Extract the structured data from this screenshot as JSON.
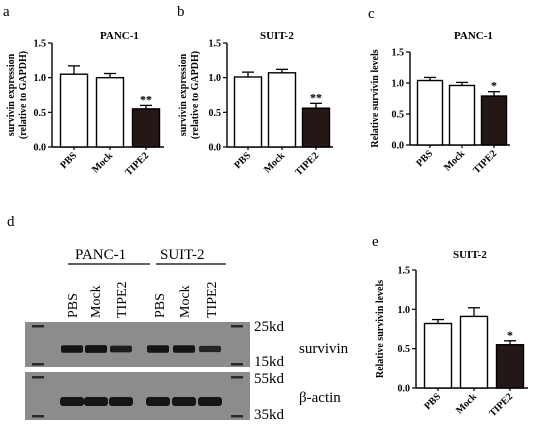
{
  "panels": {
    "a": "a",
    "b": "b",
    "c": "c",
    "d": "d",
    "e": "e"
  },
  "chart_data": [
    {
      "panel": "a",
      "type": "bar",
      "title": "PANC-1",
      "ylabel": "survivin expression (relative to GAPDH)",
      "ylabel_lines": [
        "survivin expression",
        "(relative to GAPDH)"
      ],
      "categories": [
        "PBS",
        "Mock",
        "TIPE2"
      ],
      "values": [
        1.05,
        1.0,
        0.55
      ],
      "errors": [
        0.12,
        0.06,
        0.05
      ],
      "fills": [
        "#ffffff",
        "#ffffff",
        "#231815"
      ],
      "significance": [
        "",
        "",
        "**"
      ],
      "ylim": [
        0,
        1.5
      ],
      "yticks": [
        "0.0",
        "0.5",
        "1.0",
        "1.5"
      ]
    },
    {
      "panel": "b",
      "type": "bar",
      "title": "SUIT-2",
      "ylabel": "survivin expression (relative to GAPDH)",
      "ylabel_lines": [
        "survivin expression",
        "(relative to GAPDH)"
      ],
      "categories": [
        "PBS",
        "Mock",
        "TIPE2"
      ],
      "values": [
        1.01,
        1.07,
        0.56
      ],
      "errors": [
        0.07,
        0.05,
        0.07
      ],
      "fills": [
        "#ffffff",
        "#ffffff",
        "#231815"
      ],
      "significance": [
        "",
        "",
        "**"
      ],
      "ylim": [
        0,
        1.5
      ],
      "yticks": [
        "0.0",
        "0.5",
        "1.0",
        "1.5"
      ]
    },
    {
      "panel": "c",
      "type": "bar",
      "title": "PANC-1",
      "ylabel": "Relative survivin levels",
      "ylabel_lines": [
        "Relative survivin levels"
      ],
      "categories": [
        "PBS",
        "Mock",
        "TIPE2"
      ],
      "values": [
        1.04,
        0.96,
        0.79
      ],
      "errors": [
        0.05,
        0.05,
        0.07
      ],
      "fills": [
        "#ffffff",
        "#ffffff",
        "#231815"
      ],
      "significance": [
        "",
        "",
        "*"
      ],
      "ylim": [
        0,
        1.5
      ],
      "yticks": [
        "0.0",
        "0.5",
        "1.0",
        "1.5"
      ]
    },
    {
      "panel": "e",
      "type": "bar",
      "title": "SUIT-2",
      "ylabel": "Relative survivin levels",
      "ylabel_lines": [
        "Relative survivin levels"
      ],
      "categories": [
        "PBS",
        "Mock",
        "TIPE2"
      ],
      "values": [
        0.82,
        0.91,
        0.55
      ],
      "errors": [
        0.05,
        0.11,
        0.05
      ],
      "fills": [
        "#ffffff",
        "#ffffff",
        "#231815"
      ],
      "significance": [
        "",
        "",
        "*"
      ],
      "ylim": [
        0,
        1.5
      ],
      "yticks": [
        "0.0",
        "0.5",
        "1.0",
        "1.5"
      ]
    }
  ],
  "blot": {
    "groups": [
      "PANC-1",
      "SUIT-2"
    ],
    "lanes": [
      "PBS",
      "Mock",
      "TIPE2",
      "PBS",
      "Mock",
      "TIPE2"
    ],
    "markers_top": [
      "25kd",
      "15kd"
    ],
    "markers_bottom": [
      "55kd",
      "35kd"
    ],
    "labels": [
      "survivin",
      "β-actin"
    ],
    "survivin_band_intensity": [
      0.9,
      0.92,
      0.7,
      0.9,
      0.88,
      0.55
    ]
  }
}
